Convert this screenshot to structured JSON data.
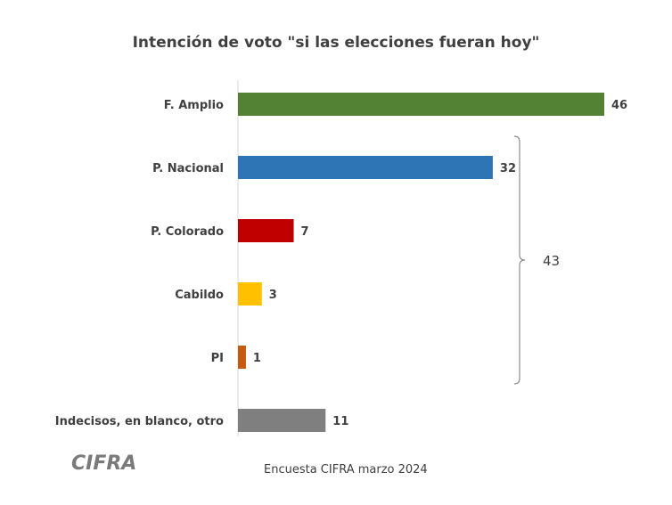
{
  "chart_data": {
    "type": "bar",
    "orientation": "horizontal",
    "title": "Intención de voto \"si las elecciones fueran hoy\"",
    "categories": [
      "F. Amplio",
      "P. Nacional",
      "P. Colorado",
      "Cabildo",
      "PI",
      "Indecisos, en blanco, otro"
    ],
    "values": [
      46,
      32,
      7,
      3,
      1,
      11
    ],
    "colors": [
      "#548235",
      "#2e75b6",
      "#c00000",
      "#ffc000",
      "#c55a11",
      "#7f7f7f"
    ],
    "xlim": [
      0,
      46
    ],
    "grid": false,
    "annotations": [
      {
        "type": "brace",
        "from_category": "P. Nacional",
        "to_category": "PI",
        "label": "43"
      }
    ]
  },
  "footer": {
    "logo_text": "CIFRA",
    "source": "Encuesta CIFRA marzo 2024"
  }
}
